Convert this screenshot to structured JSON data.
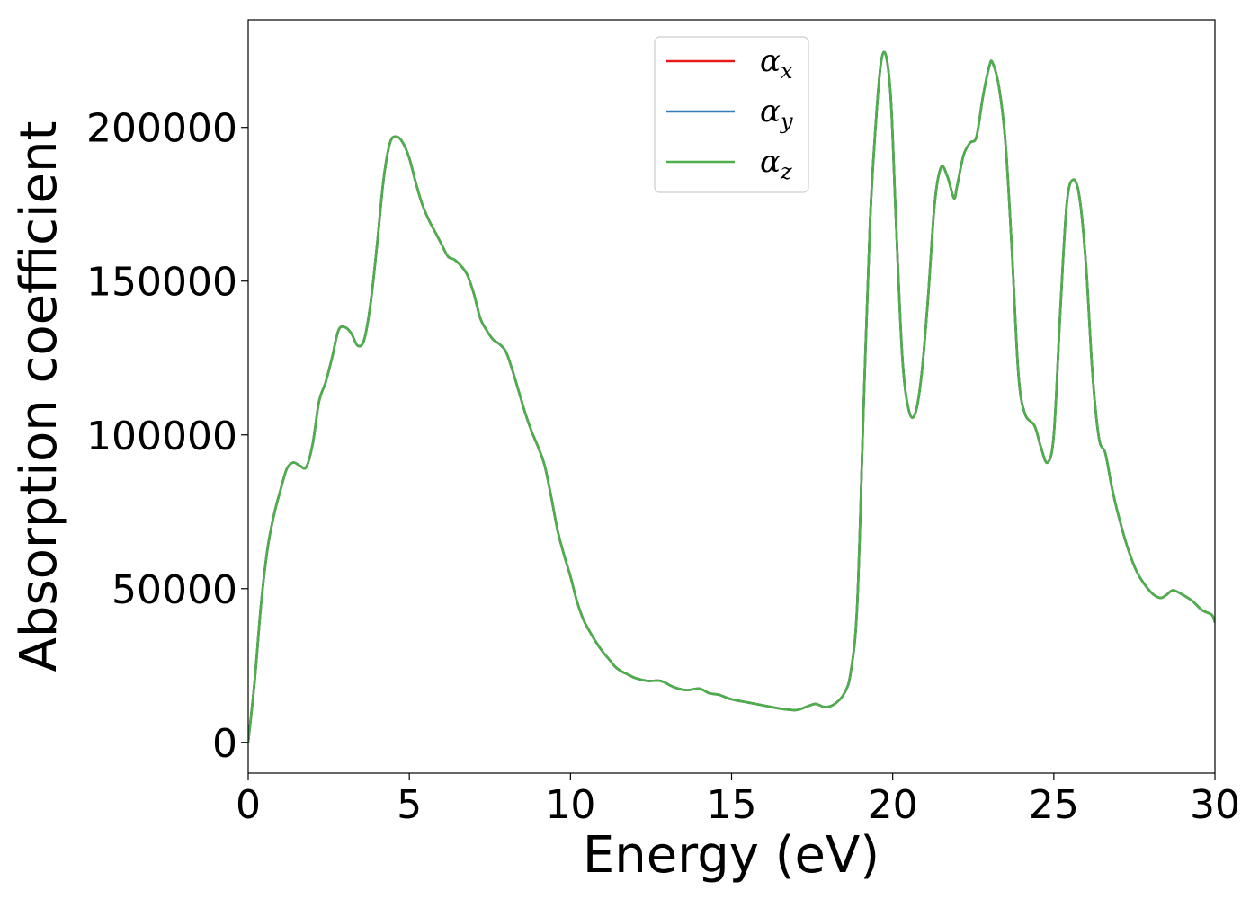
{
  "chart_data": {
    "type": "line",
    "xlabel": "Energy (eV)",
    "ylabel": "Absorption coefficient",
    "xlim": [
      0,
      30
    ],
    "ylim": [
      -10000,
      235000
    ],
    "x_ticks": [
      0,
      5,
      10,
      15,
      20,
      25,
      30
    ],
    "y_ticks": [
      0,
      50000,
      100000,
      150000,
      200000
    ],
    "x_tick_labels": [
      "0",
      "5",
      "10",
      "15",
      "20",
      "25",
      "30"
    ],
    "y_tick_labels": [
      "0",
      "50000",
      "100000",
      "150000",
      "200000"
    ],
    "grid": false,
    "legend_position": "top-center",
    "legend": [
      {
        "symbol": "α",
        "subscript": "x",
        "color": "#e41a1c"
      },
      {
        "symbol": "α",
        "subscript": "y",
        "color": "#377eb8"
      },
      {
        "symbol": "α",
        "subscript": "z",
        "color": "#4daf4a"
      }
    ],
    "x": [
      0,
      0.2,
      0.4,
      0.6,
      0.8,
      1.0,
      1.2,
      1.4,
      1.6,
      1.8,
      2.0,
      2.2,
      2.4,
      2.6,
      2.8,
      3.0,
      3.2,
      3.4,
      3.6,
      3.8,
      4.0,
      4.2,
      4.4,
      4.6,
      4.8,
      5.0,
      5.2,
      5.4,
      5.6,
      5.8,
      6.0,
      6.2,
      6.4,
      6.6,
      6.8,
      7.0,
      7.2,
      7.4,
      7.6,
      7.8,
      8.0,
      8.2,
      8.4,
      8.6,
      8.8,
      9.0,
      9.2,
      9.4,
      9.6,
      9.8,
      10.0,
      10.2,
      10.4,
      10.6,
      10.8,
      11.0,
      11.2,
      11.4,
      11.6,
      11.8,
      12.0,
      12.4,
      12.8,
      13.2,
      13.6,
      14.0,
      14.3,
      14.6,
      15.0,
      15.5,
      16.0,
      16.5,
      17.0,
      17.3,
      17.6,
      17.9,
      18.2,
      18.5,
      18.7,
      18.9,
      19.1,
      19.3,
      19.5,
      19.65,
      19.8,
      19.95,
      20.1,
      20.3,
      20.5,
      20.7,
      20.9,
      21.1,
      21.3,
      21.5,
      21.7,
      21.9,
      22.0,
      22.2,
      22.4,
      22.6,
      22.8,
      23.0,
      23.1,
      23.3,
      23.5,
      23.7,
      23.9,
      24.1,
      24.4,
      24.6,
      24.8,
      25.0,
      25.2,
      25.4,
      25.6,
      25.8,
      26.0,
      26.2,
      26.4,
      26.6,
      26.8,
      27.0,
      27.3,
      27.6,
      28.0,
      28.3,
      28.5,
      28.7,
      29.0,
      29.3,
      29.6,
      29.9,
      30.0
    ],
    "series": [
      {
        "values": [
          0,
          20000,
          45000,
          63000,
          74000,
          82000,
          89000,
          91000,
          90000,
          89500,
          97000,
          111000,
          117000,
          125000,
          134000,
          135000,
          133000,
          129000,
          131000,
          143000,
          162000,
          183000,
          195000,
          197000,
          195000,
          190000,
          182000,
          175000,
          170000,
          166000,
          162000,
          158000,
          157000,
          155000,
          152000,
          146000,
          138000,
          134000,
          131000,
          129500,
          127000,
          121000,
          114000,
          107000,
          101000,
          96000,
          90000,
          80000,
          69000,
          61000,
          54000,
          46000,
          40000,
          36000,
          32500,
          29500,
          27000,
          24500,
          23000,
          22000,
          21000,
          20000,
          20000,
          18000,
          17000,
          17500,
          16000,
          15500,
          14000,
          13000,
          12000,
          11000,
          10500,
          11500,
          12500,
          11500,
          12500,
          16000,
          23000,
          45000,
          110000,
          170000,
          205000,
          222000,
          223000,
          208000,
          170000,
          125000,
          108000,
          107000,
          120000,
          145000,
          175000,
          187000,
          184000,
          177000,
          181000,
          191000,
          195000,
          197000,
          210000,
          220000,
          221000,
          213000,
          195000,
          160000,
          120000,
          107000,
          103000,
          96000,
          91000,
          100000,
          140000,
          175000,
          183000,
          177000,
          155000,
          120000,
          99000,
          94000,
          83000,
          74000,
          63000,
          55000,
          49000,
          47000,
          48000,
          49500,
          48000,
          46000,
          43000,
          41500,
          39000
        ],
        "color": "#e41a1c"
      },
      {
        "values": [
          0,
          20000,
          45000,
          63000,
          74000,
          82000,
          89000,
          91000,
          90000,
          89500,
          97000,
          111000,
          117000,
          125000,
          134000,
          135000,
          133000,
          129000,
          131000,
          143000,
          162000,
          183000,
          195000,
          197000,
          195000,
          190000,
          182000,
          175000,
          170000,
          166000,
          162000,
          158000,
          157000,
          155000,
          152000,
          146000,
          138000,
          134000,
          131000,
          129500,
          127000,
          121000,
          114000,
          107000,
          101000,
          96000,
          90000,
          80000,
          69000,
          61000,
          54000,
          46000,
          40000,
          36000,
          32500,
          29500,
          27000,
          24500,
          23000,
          22000,
          21000,
          20000,
          20000,
          18000,
          17000,
          17500,
          16000,
          15500,
          14000,
          13000,
          12000,
          11000,
          10500,
          11500,
          12500,
          11500,
          12500,
          16000,
          23000,
          45000,
          110000,
          170000,
          205000,
          222000,
          223000,
          208000,
          170000,
          125000,
          108000,
          107000,
          120000,
          145000,
          175000,
          187000,
          184000,
          177000,
          181000,
          191000,
          195000,
          197000,
          210000,
          220000,
          221000,
          213000,
          195000,
          160000,
          120000,
          107000,
          103000,
          96000,
          91000,
          100000,
          140000,
          175000,
          183000,
          177000,
          155000,
          120000,
          99000,
          94000,
          83000,
          74000,
          63000,
          55000,
          49000,
          47000,
          48000,
          49500,
          48000,
          46000,
          43000,
          41500,
          39000
        ],
        "color": "#377eb8"
      },
      {
        "values": [
          0,
          20000,
          45000,
          63000,
          74000,
          82000,
          89000,
          91000,
          90000,
          89500,
          97000,
          111000,
          117000,
          125000,
          134000,
          135000,
          133000,
          129000,
          131000,
          143000,
          162000,
          183000,
          195000,
          197000,
          195000,
          190000,
          182000,
          175000,
          170000,
          166000,
          162000,
          158000,
          157000,
          155000,
          152000,
          146000,
          138000,
          134000,
          131000,
          129500,
          127000,
          121000,
          114000,
          107000,
          101000,
          96000,
          90000,
          80000,
          69000,
          61000,
          54000,
          46000,
          40000,
          36000,
          32500,
          29500,
          27000,
          24500,
          23000,
          22000,
          21000,
          20000,
          20000,
          18000,
          17000,
          17500,
          16000,
          15500,
          14000,
          13000,
          12000,
          11000,
          10500,
          11500,
          12500,
          11500,
          12500,
          16000,
          23000,
          45000,
          110000,
          170000,
          205000,
          222000,
          223000,
          208000,
          170000,
          125000,
          108000,
          107000,
          120000,
          145000,
          175000,
          187000,
          184000,
          177000,
          181000,
          191000,
          195000,
          197000,
          210000,
          220000,
          221000,
          213000,
          195000,
          160000,
          120000,
          107000,
          103000,
          96000,
          91000,
          100000,
          140000,
          175000,
          183000,
          177000,
          155000,
          120000,
          99000,
          94000,
          83000,
          74000,
          63000,
          55000,
          49000,
          47000,
          48000,
          49500,
          48000,
          46000,
          43000,
          41500,
          39000
        ],
        "color": "#4daf4a"
      }
    ]
  }
}
